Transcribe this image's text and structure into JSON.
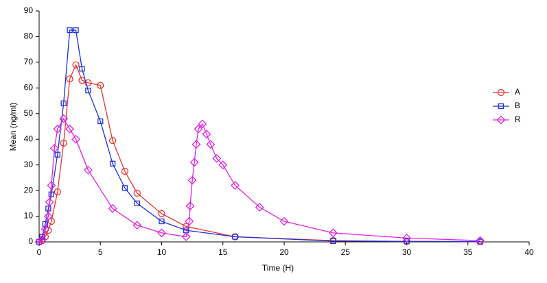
{
  "chart_data": {
    "type": "line",
    "x_label": "Time (H)",
    "y_label": "Mean (ng/ml)",
    "xlim": [
      0,
      40
    ],
    "xticks": [
      0,
      5,
      10,
      15,
      20,
      25,
      30,
      35,
      40
    ],
    "ylim": [
      0,
      90
    ],
    "yticks": [
      0,
      10,
      20,
      30,
      40,
      50,
      60,
      70,
      80,
      90
    ],
    "legend": "right",
    "series": [
      {
        "name": "A",
        "color": "#e8332a",
        "marker": "circle",
        "x": [
          0,
          0.25,
          0.5,
          0.75,
          1,
          1.5,
          2,
          2.5,
          3,
          3.5,
          4,
          5,
          6,
          7,
          8,
          10,
          12,
          16,
          24,
          30,
          36
        ],
        "values": [
          0,
          0.5,
          2,
          4.5,
          8,
          19.5,
          38.5,
          63.5,
          69,
          63,
          62,
          61,
          39.5,
          27.5,
          19,
          11,
          6,
          2,
          0.5,
          0.2,
          0.1
        ]
      },
      {
        "name": "B",
        "color": "#1c2fd8",
        "marker": "square",
        "x": [
          0,
          0.25,
          0.5,
          0.75,
          1,
          1.5,
          2,
          2.5,
          3,
          3.5,
          4,
          5,
          6,
          7,
          8,
          10,
          12,
          16,
          24,
          30,
          36
        ],
        "values": [
          0,
          2,
          7,
          13,
          18.5,
          34,
          54,
          82.5,
          82.5,
          67.5,
          59,
          47,
          30.5,
          21,
          15,
          8,
          4.5,
          2,
          0.3,
          0.2,
          0.1
        ]
      },
      {
        "name": "R",
        "color": "#e020e0",
        "marker": "diamond",
        "x": [
          0,
          0.25,
          0.5,
          0.75,
          0.85,
          1,
          1.25,
          1.5,
          2,
          2.5,
          3,
          4,
          6,
          8,
          10,
          12,
          12.25,
          12.33,
          12.5,
          12.67,
          12.83,
          13,
          13.33,
          13.67,
          14,
          14.5,
          15,
          16,
          18,
          20,
          24,
          30,
          36
        ],
        "values": [
          0,
          1,
          5,
          10,
          15.5,
          22,
          36.5,
          44,
          48,
          44,
          40,
          28,
          13,
          6.5,
          3.5,
          2,
          8,
          14,
          24,
          31,
          38,
          44,
          46,
          42,
          38,
          32.5,
          30,
          22,
          13.5,
          8,
          3.5,
          1.5,
          0.5
        ]
      }
    ]
  }
}
